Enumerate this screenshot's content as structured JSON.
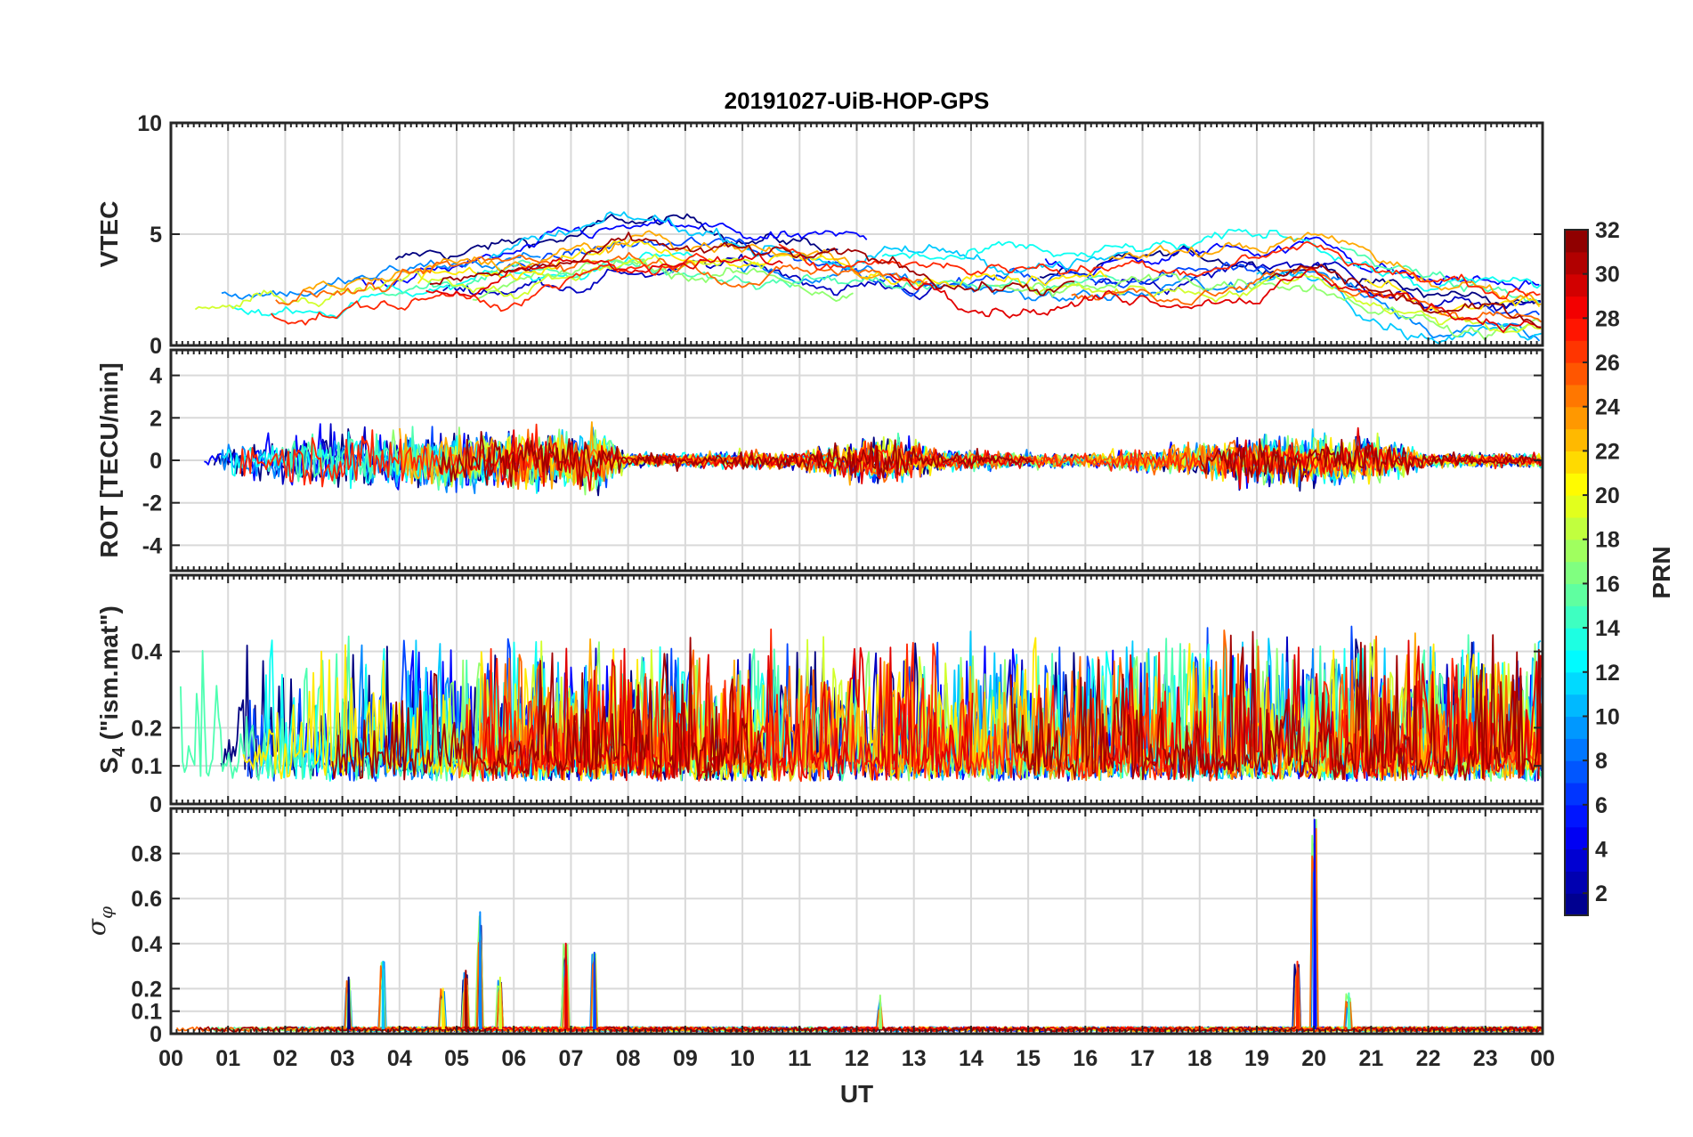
{
  "chart_data": {
    "type": "line",
    "title": "20191027-UiB-HOP-GPS",
    "xlabel": "UT",
    "x_range": [
      0,
      24
    ],
    "x_tick_labels": [
      "00",
      "01",
      "02",
      "03",
      "04",
      "05",
      "06",
      "07",
      "08",
      "09",
      "10",
      "11",
      "12",
      "13",
      "14",
      "15",
      "16",
      "17",
      "18",
      "19",
      "20",
      "21",
      "22",
      "23",
      "00"
    ],
    "panels": [
      {
        "id": "vtec",
        "ylabel": "VTEC",
        "ylim": [
          0,
          10
        ],
        "y_ticks": [
          0,
          5,
          10
        ],
        "y_tick_labels": [
          "0",
          "5",
          "10"
        ],
        "grid": true,
        "profile": [
          {
            "t": 0,
            "v": 1.8
          },
          {
            "t": 2,
            "v": 2.3
          },
          {
            "t": 4,
            "v": 2.8
          },
          {
            "t": 6,
            "v": 3.4
          },
          {
            "t": 8,
            "v": 4.3
          },
          {
            "t": 10,
            "v": 4.0
          },
          {
            "t": 12,
            "v": 3.5
          },
          {
            "t": 14,
            "v": 3.2
          },
          {
            "t": 16,
            "v": 3.0
          },
          {
            "t": 18,
            "v": 3.3
          },
          {
            "t": 20,
            "v": 4.0
          },
          {
            "t": 22,
            "v": 2.2
          },
          {
            "t": 24,
            "v": 1.8
          }
        ]
      },
      {
        "id": "rot",
        "ylabel": "ROT [TECU/min]",
        "ylim": [
          -5.2,
          5.2
        ],
        "y_ticks": [
          -4,
          -2,
          0,
          2,
          4
        ],
        "y_tick_labels": [
          "-4",
          "-2",
          "0",
          "2",
          "4"
        ],
        "grid": true,
        "activity": [
          {
            "t": 0,
            "a": 0.3
          },
          {
            "t": 3,
            "a": 0.9
          },
          {
            "t": 7.5,
            "a": 0.9
          },
          {
            "t": 8,
            "a": 0.2
          },
          {
            "t": 11,
            "a": 0.3
          },
          {
            "t": 12.5,
            "a": 0.8
          },
          {
            "t": 13.5,
            "a": 0.3
          },
          {
            "t": 16,
            "a": 0.2
          },
          {
            "t": 19.5,
            "a": 0.8
          },
          {
            "t": 21,
            "a": 0.7
          },
          {
            "t": 22,
            "a": 0.2
          },
          {
            "t": 24,
            "a": 0.2
          }
        ]
      },
      {
        "id": "s4",
        "ylabel": "S4 (\"ism.mat\")",
        "ylabel_main": "S",
        "ylabel_sub": "4",
        "ylabel_rest": " (\"ism.mat\")",
        "ylim": [
          0,
          0.6
        ],
        "y_ticks": [
          0,
          0.1,
          0.2,
          0.4
        ],
        "y_tick_labels": [
          "0",
          "0.1",
          "0.2",
          "0.4"
        ],
        "grid": true,
        "base": 0.1
      },
      {
        "id": "sigma_phi",
        "ylabel": "σφ",
        "ylabel_main": "σ",
        "ylabel_sub": "φ",
        "ylim": [
          0,
          1.0
        ],
        "y_ticks": [
          0,
          0.1,
          0.2,
          0.4,
          0.6,
          0.8
        ],
        "y_tick_labels": [
          "0",
          "0.1",
          "0.2",
          "0.4",
          "0.6",
          "0.8"
        ],
        "grid": true,
        "spikes": [
          {
            "t": 3.1,
            "v": 0.25
          },
          {
            "t": 3.7,
            "v": 0.32
          },
          {
            "t": 4.75,
            "v": 0.2
          },
          {
            "t": 5.15,
            "v": 0.28
          },
          {
            "t": 5.4,
            "v": 0.54
          },
          {
            "t": 5.75,
            "v": 0.25
          },
          {
            "t": 6.9,
            "v": 0.4
          },
          {
            "t": 7.4,
            "v": 0.36
          },
          {
            "t": 12.4,
            "v": 0.17
          },
          {
            "t": 19.7,
            "v": 0.32
          },
          {
            "t": 20.0,
            "v": 0.95
          },
          {
            "t": 20.6,
            "v": 0.18
          }
        ]
      }
    ],
    "colorbar": {
      "label": "PRN",
      "range": [
        1,
        32
      ],
      "tick_values": [
        2,
        4,
        6,
        8,
        10,
        12,
        14,
        16,
        18,
        20,
        22,
        24,
        26,
        28,
        30,
        32
      ],
      "tick_labels": [
        "2",
        "4",
        "6",
        "8",
        "10",
        "12",
        "14",
        "16",
        "18",
        "20",
        "22",
        "24",
        "26",
        "28",
        "30",
        "32"
      ],
      "colormap": "jet"
    },
    "series_prn": [
      1,
      3,
      5,
      7,
      9,
      11,
      13,
      15,
      17,
      19,
      21,
      23,
      25,
      27,
      29,
      31
    ]
  }
}
